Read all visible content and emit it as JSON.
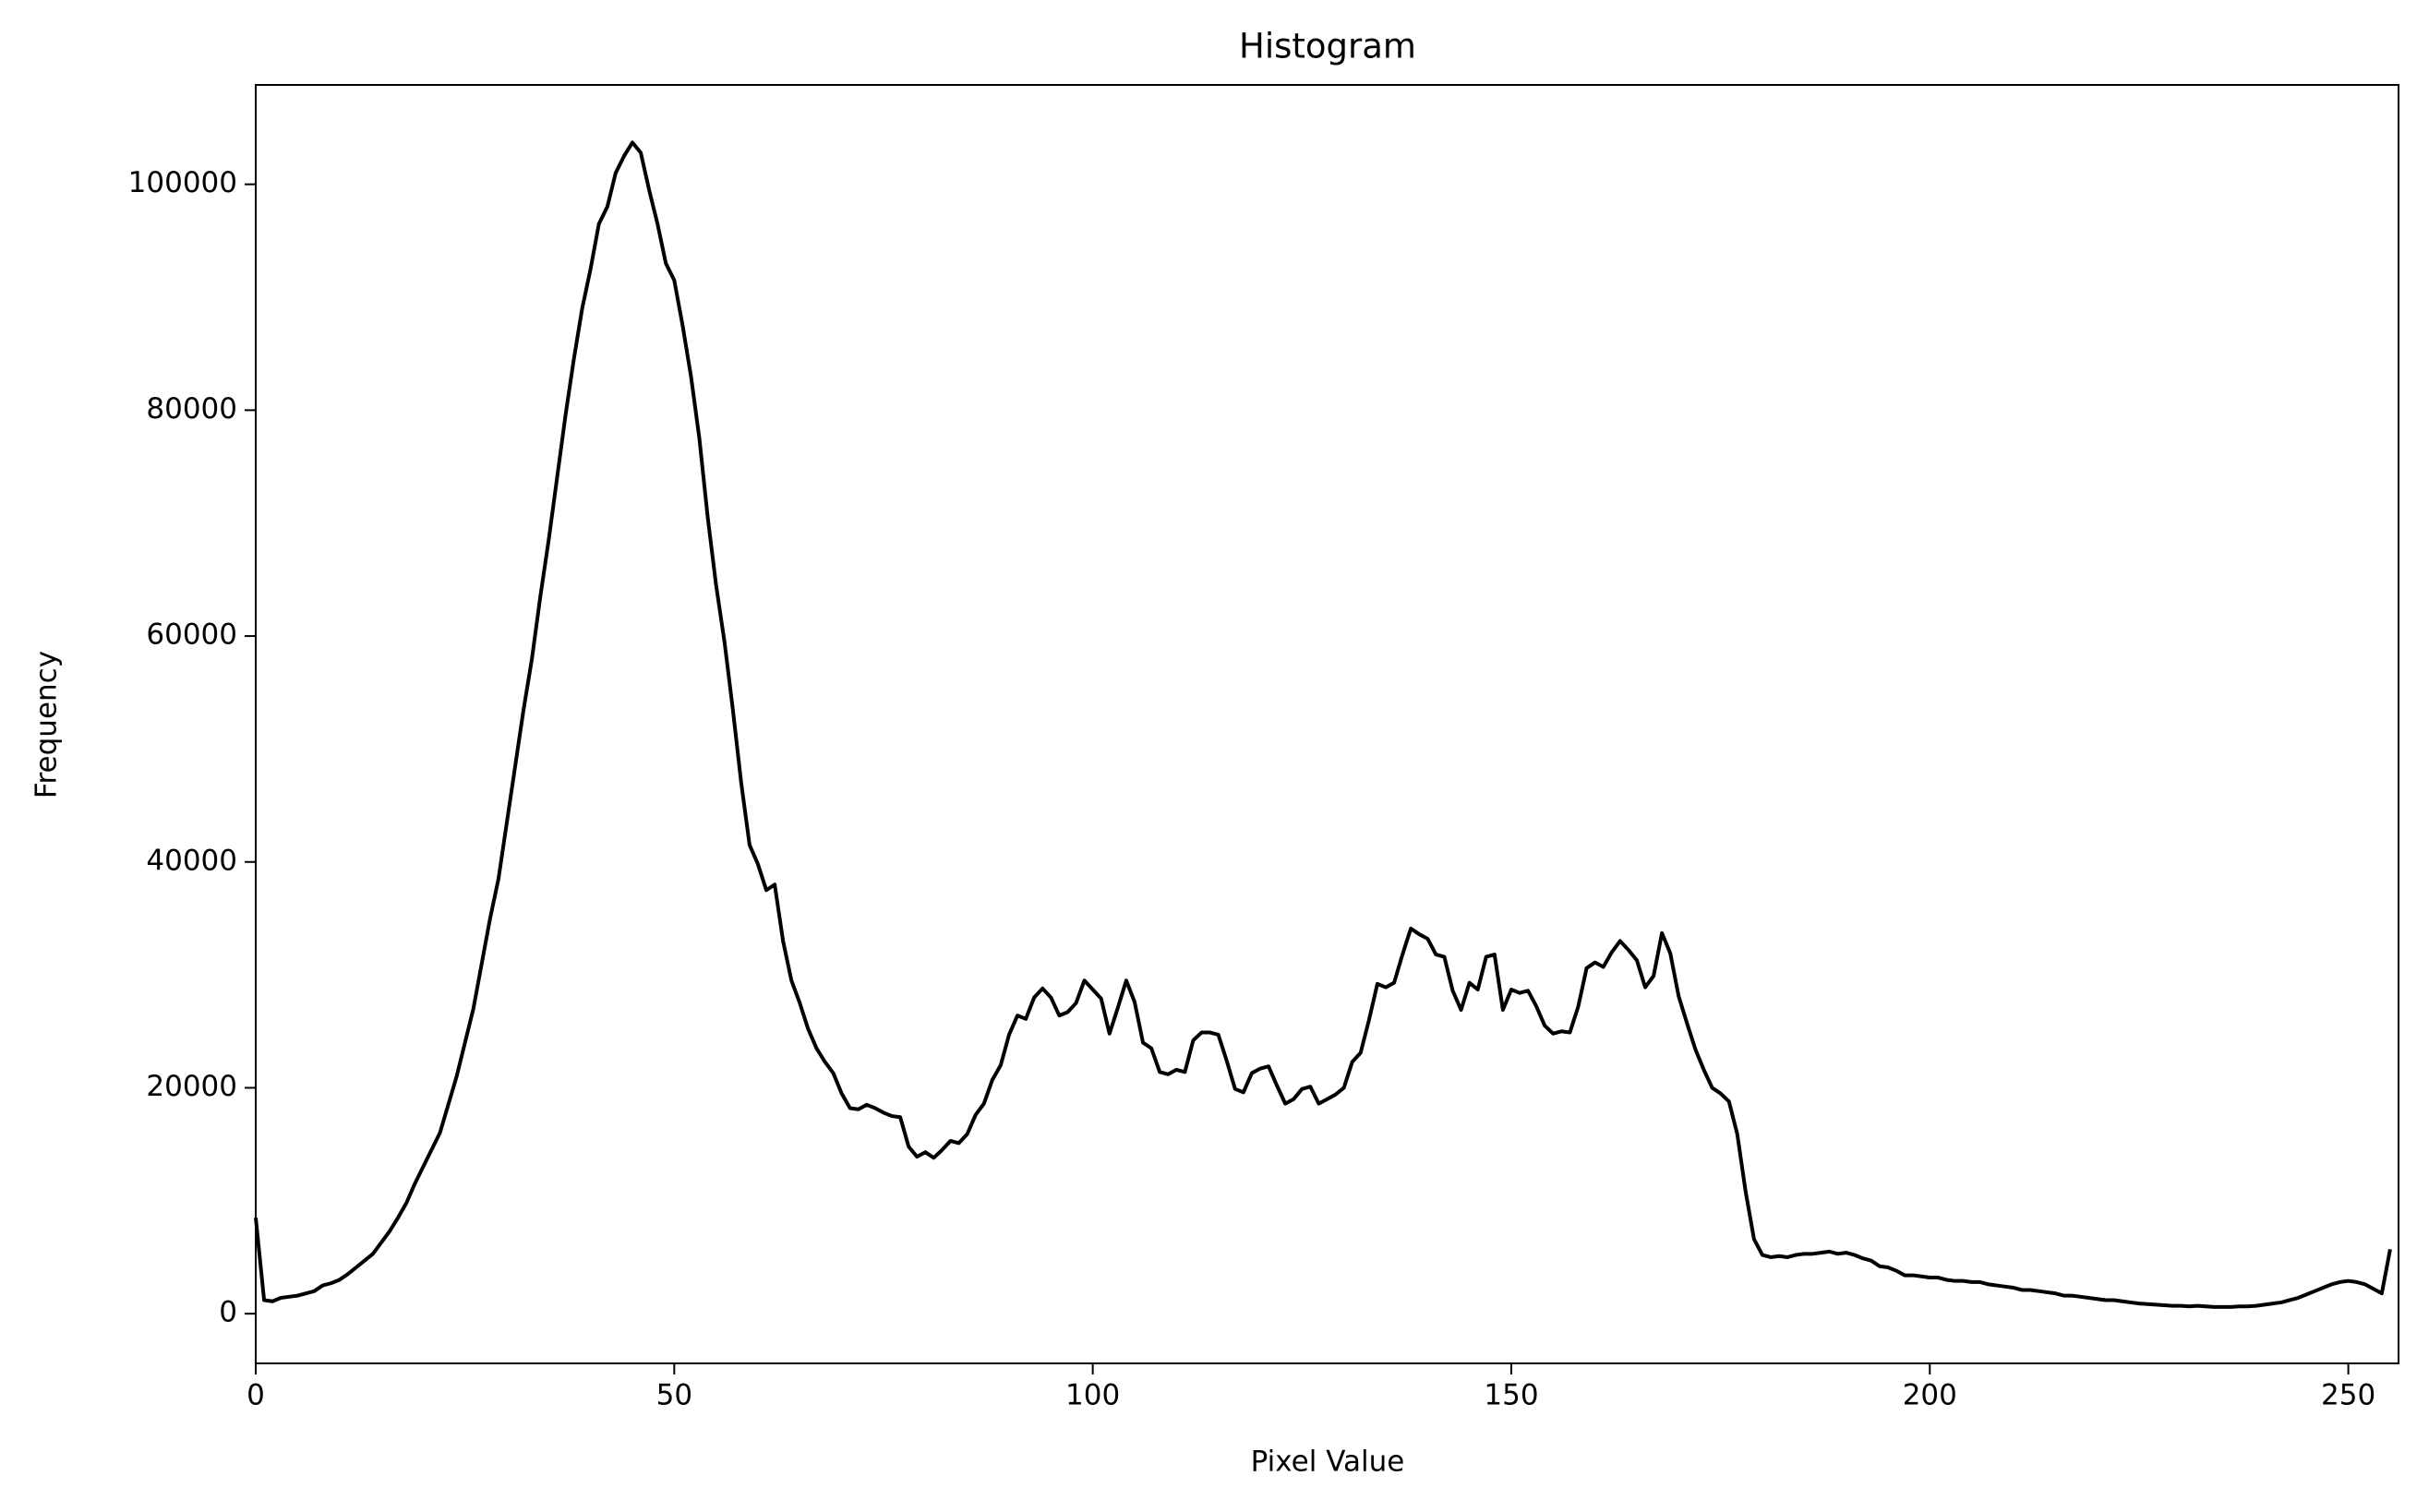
{
  "chart_data": {
    "type": "line",
    "title": "Histogram",
    "xlabel": "Pixel Value",
    "ylabel": "Frequency",
    "x": [
      0,
      1,
      2,
      3,
      4,
      5,
      6,
      7,
      8,
      9,
      10,
      11,
      12,
      13,
      14,
      15,
      16,
      17,
      18,
      19,
      20,
      21,
      22,
      23,
      24,
      25,
      26,
      27,
      28,
      29,
      30,
      31,
      32,
      33,
      34,
      35,
      36,
      37,
      38,
      39,
      40,
      41,
      42,
      43,
      44,
      45,
      46,
      47,
      48,
      49,
      50,
      51,
      52,
      53,
      54,
      55,
      56,
      57,
      58,
      59,
      60,
      61,
      62,
      63,
      64,
      65,
      66,
      67,
      68,
      69,
      70,
      71,
      72,
      73,
      74,
      75,
      76,
      77,
      78,
      79,
      80,
      81,
      82,
      83,
      84,
      85,
      86,
      87,
      88,
      89,
      90,
      91,
      92,
      93,
      94,
      95,
      96,
      97,
      98,
      99,
      100,
      101,
      102,
      103,
      104,
      105,
      106,
      107,
      108,
      109,
      110,
      111,
      112,
      113,
      114,
      115,
      116,
      117,
      118,
      119,
      120,
      121,
      122,
      123,
      124,
      125,
      126,
      127,
      128,
      129,
      130,
      131,
      132,
      133,
      134,
      135,
      136,
      137,
      138,
      139,
      140,
      141,
      142,
      143,
      144,
      145,
      146,
      147,
      148,
      149,
      150,
      151,
      152,
      153,
      154,
      155,
      156,
      157,
      158,
      159,
      160,
      161,
      162,
      163,
      164,
      165,
      166,
      167,
      168,
      169,
      170,
      171,
      172,
      173,
      174,
      175,
      176,
      177,
      178,
      179,
      180,
      181,
      182,
      183,
      184,
      185,
      186,
      187,
      188,
      189,
      190,
      191,
      192,
      193,
      194,
      195,
      196,
      197,
      198,
      199,
      200,
      201,
      202,
      203,
      204,
      205,
      206,
      207,
      208,
      209,
      210,
      211,
      212,
      213,
      214,
      215,
      216,
      217,
      218,
      219,
      220,
      221,
      222,
      223,
      224,
      225,
      226,
      227,
      228,
      229,
      230,
      231,
      232,
      233,
      234,
      235,
      236,
      237,
      238,
      239,
      240,
      241,
      242,
      243,
      244,
      245,
      246,
      247,
      248,
      249,
      250,
      251,
      252,
      253,
      254,
      255
    ],
    "values": [
      8500,
      1200,
      1100,
      1400,
      1500,
      1600,
      1800,
      2000,
      2500,
      2700,
      3000,
      3500,
      4100,
      4700,
      5300,
      6300,
      7300,
      8500,
      9800,
      11500,
      13000,
      14500,
      16000,
      18500,
      21000,
      24000,
      27000,
      31000,
      35000,
      38500,
      43500,
      48500,
      53500,
      58000,
      63500,
      68500,
      74000,
      79500,
      84500,
      89000,
      92500,
      96500,
      98000,
      101000,
      102500,
      103700,
      102800,
      99500,
      96500,
      93000,
      91500,
      87500,
      83000,
      77500,
      70500,
      64500,
      59500,
      53500,
      47000,
      41500,
      39800,
      37500,
      38000,
      33000,
      29500,
      27500,
      25200,
      23500,
      22300,
      21300,
      19500,
      18200,
      18100,
      18500,
      18200,
      17800,
      17500,
      17400,
      14800,
      13900,
      14300,
      13800,
      14500,
      15300,
      15100,
      15900,
      17600,
      18600,
      20700,
      22000,
      24700,
      26400,
      26100,
      28000,
      28800,
      28000,
      26400,
      26700,
      27500,
      29500,
      28700,
      27900,
      24800,
      27100,
      29500,
      27600,
      24000,
      23500,
      21400,
      21200,
      21600,
      21400,
      24200,
      24900,
      24900,
      24700,
      22400,
      19900,
      19600,
      21300,
      21700,
      21900,
      20200,
      18600,
      19000,
      19900,
      20100,
      18600,
      19000,
      19400,
      20000,
      22300,
      23100,
      26000,
      29200,
      28900,
      29300,
      31800,
      34100,
      33600,
      33200,
      31800,
      31600,
      28600,
      26900,
      29300,
      28700,
      31600,
      31800,
      26900,
      28700,
      28400,
      28600,
      27200,
      25500,
      24800,
      25000,
      24900,
      27200,
      30600,
      31100,
      30700,
      32000,
      33000,
      32200,
      31300,
      28900,
      29900,
      33700,
      31900,
      28100,
      25700,
      23400,
      21600,
      20000,
      19500,
      18800,
      15900,
      10800,
      6600,
      5200,
      5000,
      5100,
      5000,
      5200,
      5300,
      5300,
      5400,
      5500,
      5300,
      5400,
      5200,
      4900,
      4700,
      4200,
      4100,
      3800,
      3400,
      3400,
      3300,
      3200,
      3200,
      3000,
      2900,
      2900,
      2800,
      2800,
      2600,
      2500,
      2400,
      2300,
      2100,
      2100,
      2000,
      1900,
      1800,
      1600,
      1600,
      1500,
      1400,
      1300,
      1200,
      1200,
      1100,
      1000,
      900,
      850,
      800,
      750,
      700,
      700,
      650,
      700,
      650,
      600,
      600,
      600,
      650,
      650,
      700,
      800,
      900,
      1000,
      1200,
      1400,
      1700,
      2000,
      2300,
      2600,
      2800,
      2900,
      2800,
      2600,
      2200,
      1800,
      5700
    ],
    "color": "#000000",
    "xlim": [
      0,
      256
    ],
    "xticks": [
      0,
      50,
      100,
      150,
      200,
      250
    ],
    "ylim": [
      -4400,
      108800
    ],
    "yticks": [
      0,
      20000,
      40000,
      60000,
      80000,
      100000
    ],
    "grid": false
  }
}
